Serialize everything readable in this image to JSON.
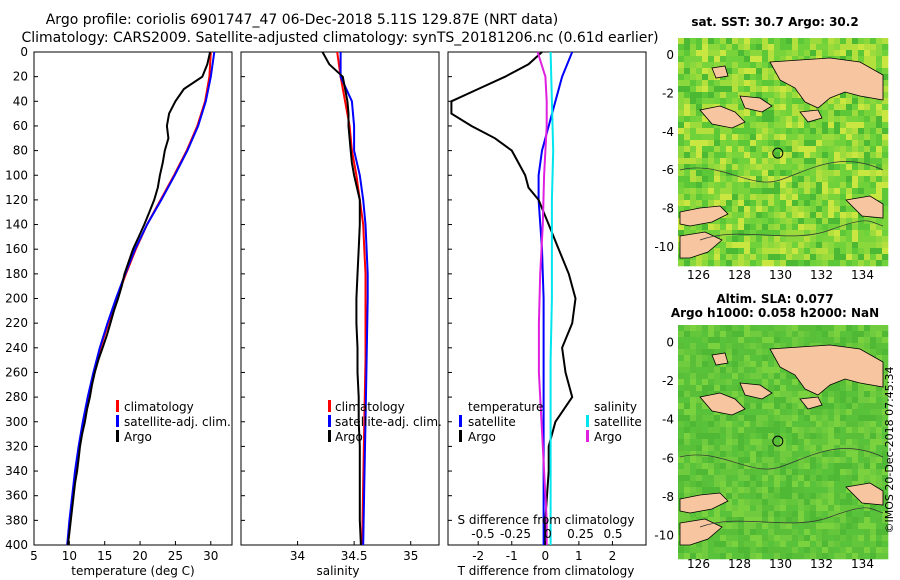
{
  "header": {
    "line1": "Argo profile: coriolis 6901747_47 06-Dec-2018 5.11S 129.87E (NRT data)",
    "line2": "Climatology: CARS2009. Satellite-adjusted climatology: synTS_20181206.nc (0.61d earlier)"
  },
  "colors": {
    "climatology": "#ff0000",
    "satellite": "#0000ff",
    "argo": "#000000",
    "sat_salinity": "#00e5ee",
    "argo_salinity": "#e020e0",
    "land": "#f7c59f",
    "sea_green": "#55c038"
  },
  "chart_data": [
    {
      "type": "line",
      "panel": "temperature",
      "xlabel": "temperature (deg C)",
      "ylabel": "depth",
      "xlim": [
        5,
        33
      ],
      "ylim": [
        400,
        0
      ],
      "xticks": [
        5,
        10,
        15,
        20,
        25,
        30
      ],
      "yticks": [
        0,
        20,
        40,
        60,
        80,
        100,
        120,
        140,
        160,
        180,
        200,
        220,
        240,
        260,
        280,
        300,
        320,
        340,
        360,
        380,
        400
      ],
      "legend": [
        "climatology",
        "satellite-adj. clim.",
        "Argo"
      ],
      "series": [
        {
          "name": "climatology",
          "depth": [
            0,
            20,
            40,
            60,
            80,
            100,
            120,
            140,
            160,
            180,
            200,
            220,
            240,
            260,
            280,
            300,
            320,
            340,
            360,
            380,
            400
          ],
          "values": [
            30.0,
            29.8,
            29.2,
            28.1,
            26.6,
            24.8,
            22.9,
            21.0,
            19.4,
            18.0,
            16.7,
            15.5,
            14.4,
            13.5,
            12.7,
            12.0,
            11.4,
            10.9,
            10.5,
            10.1,
            9.8
          ]
        },
        {
          "name": "satellite-adj. clim.",
          "depth": [
            0,
            20,
            40,
            60,
            80,
            100,
            120,
            140,
            160,
            180,
            200,
            220,
            240,
            260,
            280,
            300,
            320,
            340,
            360,
            380,
            400
          ],
          "values": [
            30.5,
            30.0,
            29.3,
            28.2,
            26.7,
            24.9,
            23.0,
            21.0,
            19.3,
            17.9,
            16.6,
            15.4,
            14.3,
            13.4,
            12.6,
            11.9,
            11.3,
            10.8,
            10.4,
            10.0,
            9.7
          ]
        },
        {
          "name": "Argo",
          "depth": [
            0,
            10,
            20,
            30,
            40,
            50,
            60,
            70,
            80,
            90,
            100,
            110,
            120,
            130,
            140,
            150,
            160,
            170,
            180,
            190,
            200,
            210,
            220,
            230,
            240,
            250,
            260,
            270,
            280,
            290,
            300,
            310,
            320,
            330,
            340,
            350,
            360,
            370,
            380,
            390,
            400
          ],
          "values": [
            29.9,
            29.5,
            28.8,
            26.2,
            25.0,
            24.1,
            23.8,
            24.0,
            23.5,
            23.2,
            22.8,
            22.5,
            22.0,
            21.3,
            20.6,
            19.8,
            19.0,
            18.4,
            17.8,
            17.4,
            16.9,
            16.3,
            15.8,
            15.3,
            14.7,
            14.1,
            13.6,
            13.2,
            12.9,
            12.5,
            12.2,
            11.8,
            11.5,
            11.3,
            11.1,
            10.8,
            10.6,
            10.4,
            10.2,
            10.0,
            9.8
          ]
        }
      ]
    },
    {
      "type": "line",
      "panel": "salinity",
      "xlabel": "salinity",
      "xlim": [
        33.5,
        35.25
      ],
      "ylim": [
        400,
        0
      ],
      "xticks": [
        34,
        34.5,
        35
      ],
      "legend": [
        "climatology",
        "satellite-adj. clim.",
        "Argo"
      ],
      "series": [
        {
          "name": "climatology",
          "depth": [
            0,
            20,
            40,
            60,
            80,
            100,
            120,
            140,
            160,
            180,
            200,
            250,
            300,
            350,
            400
          ],
          "values": [
            34.35,
            34.38,
            34.42,
            34.46,
            34.48,
            34.52,
            34.55,
            34.58,
            34.59,
            34.6,
            34.6,
            34.6,
            34.59,
            34.58,
            34.57
          ]
        },
        {
          "name": "satellite-adj. clim.",
          "depth": [
            0,
            20,
            40,
            60,
            80,
            100,
            120,
            140,
            160,
            180,
            200,
            250,
            300,
            350,
            400
          ],
          "values": [
            34.38,
            34.38,
            34.48,
            34.5,
            34.5,
            34.55,
            34.58,
            34.6,
            34.61,
            34.62,
            34.62,
            34.61,
            34.6,
            34.59,
            34.58
          ]
        },
        {
          "name": "Argo",
          "depth": [
            0,
            10,
            20,
            30,
            40,
            50,
            60,
            70,
            80,
            90,
            100,
            120,
            140,
            160,
            180,
            200,
            220,
            240,
            260,
            280,
            300,
            320,
            340,
            360,
            380,
            400
          ],
          "values": [
            34.22,
            34.28,
            34.4,
            34.42,
            34.44,
            34.45,
            34.45,
            34.46,
            34.47,
            34.48,
            34.5,
            34.55,
            34.55,
            34.54,
            34.53,
            34.52,
            34.52,
            34.53,
            34.53,
            34.54,
            34.54,
            34.55,
            34.55,
            34.55,
            34.55,
            34.56
          ]
        }
      ]
    },
    {
      "type": "line",
      "panel": "difference",
      "xlabel": "T difference from climatology",
      "xlabel2": "S difference from climatology",
      "xlim": [
        -2.9,
        3.0
      ],
      "xticks": [
        -2,
        -1,
        0,
        1,
        2
      ],
      "sticks": [
        "-0.5",
        "-0.25",
        "0",
        "0.25",
        "0.5"
      ],
      "legend_temperature_title": "temperature",
      "legend_salinity_title": "salinity",
      "legend": [
        "satellite",
        "Argo",
        "satellite",
        "Argo"
      ],
      "series": [
        {
          "name": "temperature satellite",
          "depth": [
            0,
            20,
            40,
            60,
            80,
            100,
            120,
            140,
            160,
            200,
            250,
            300,
            350,
            400
          ],
          "values": [
            0.8,
            0.5,
            0.3,
            0.1,
            -0.1,
            -0.2,
            -0.2,
            -0.15,
            -0.1,
            -0.05,
            -0.05,
            -0.05,
            -0.05,
            -0.05
          ]
        },
        {
          "name": "temperature Argo",
          "depth": [
            0,
            10,
            20,
            30,
            40,
            50,
            60,
            70,
            80,
            90,
            100,
            110,
            120,
            140,
            160,
            180,
            200,
            220,
            240,
            260,
            280,
            300,
            320,
            340,
            360,
            380,
            400
          ],
          "values": [
            -0.1,
            -0.5,
            -1.2,
            -2.0,
            -2.8,
            -2.8,
            -2.2,
            -1.5,
            -1.0,
            -0.8,
            -0.6,
            -0.5,
            -0.2,
            0.1,
            0.4,
            0.7,
            0.9,
            0.8,
            0.5,
            0.6,
            0.8,
            0.3,
            0.1,
            0.1,
            0.05,
            0.0,
            0.0
          ]
        },
        {
          "name": "salinity satellite",
          "depth": [
            0,
            40,
            80,
            120,
            160,
            200,
            250,
            300,
            350,
            400
          ],
          "values": [
            0.02,
            0.03,
            0.04,
            0.03,
            0.03,
            0.03,
            0.02,
            0.02,
            0.02,
            0.02
          ]
        },
        {
          "name": "salinity Argo",
          "depth": [
            0,
            10,
            20,
            40,
            60,
            80,
            100,
            140,
            180,
            220,
            260,
            300,
            340,
            380,
            400
          ],
          "values": [
            -0.08,
            -0.05,
            -0.02,
            -0.01,
            -0.01,
            -0.02,
            -0.03,
            -0.04,
            -0.06,
            -0.07,
            -0.07,
            -0.05,
            -0.03,
            -0.01,
            -0.01
          ]
        }
      ]
    }
  ],
  "maps": {
    "sst": {
      "title": "sat. SST: 30.7 Argo: 30.2",
      "lon_ticks": [
        "126",
        "128",
        "130",
        "132",
        "134"
      ],
      "lat_ticks": [
        "0",
        "-2",
        "-4",
        "-6",
        "-8",
        "-10"
      ],
      "argo_position": [
        129.87,
        -5.11
      ]
    },
    "sla": {
      "title1": "Altim. SLA: 0.077",
      "title2": "Argo h1000: 0.058 h2000: NaN",
      "lon_ticks": [
        "126",
        "128",
        "130",
        "132",
        "134"
      ],
      "lat_ticks": [
        "0",
        "-2",
        "-4",
        "-6",
        "-8",
        "-10"
      ],
      "argo_position": [
        129.87,
        -5.11
      ]
    }
  },
  "footer": {
    "credit": "©IMOS 20-Dec-2018 07:45:34"
  }
}
